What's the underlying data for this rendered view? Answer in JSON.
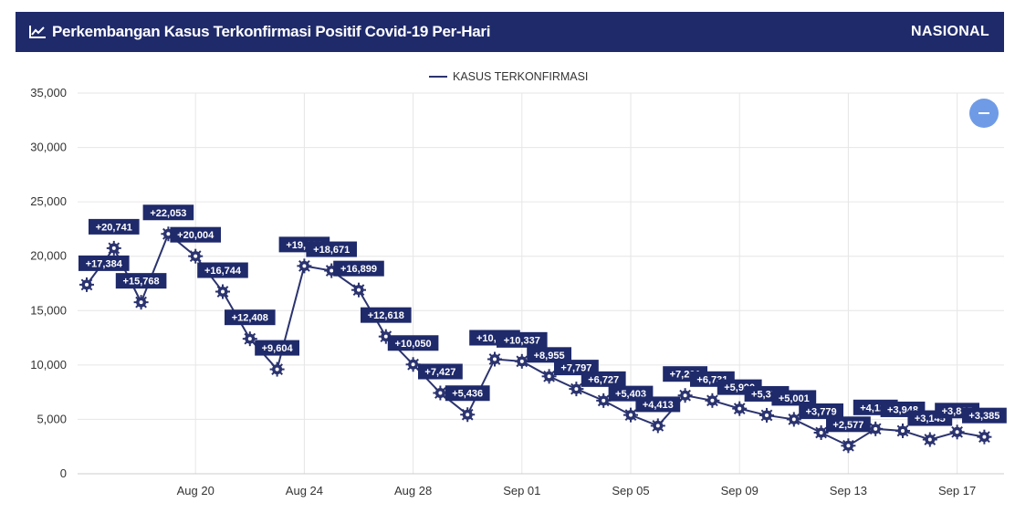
{
  "header": {
    "title": "Perkembangan Kasus Terkonfirmasi Positif Covid-19 Per-Hari",
    "region": "NASIONAL"
  },
  "colors": {
    "header_bg": "#1f2a6b",
    "series": "#2b336f",
    "label_bg": "#1f2a6b",
    "zoom_button": "#6f9be6"
  },
  "chart_data": {
    "type": "line",
    "title": "Perkembangan Kasus Terkonfirmasi Positif Covid-19 Per-Hari",
    "xlabel": "",
    "ylabel": "",
    "ylim": [
      0,
      35000
    ],
    "y_ticks": [
      0,
      5000,
      10000,
      15000,
      20000,
      25000,
      30000,
      35000
    ],
    "y_tick_labels": [
      "0",
      "5,000",
      "10,000",
      "15,000",
      "20,000",
      "25,000",
      "30,000",
      "35,000"
    ],
    "x_tick_labels": [
      "Aug 20",
      "Aug 24",
      "Aug 28",
      "Sep 01",
      "Sep 05",
      "Sep 09",
      "Sep 13",
      "Sep 17"
    ],
    "grid": true,
    "legend": "top-center",
    "x": [
      "Aug 16",
      "Aug 17",
      "Aug 18",
      "Aug 19",
      "Aug 20",
      "Aug 21",
      "Aug 22",
      "Aug 23",
      "Aug 24",
      "Aug 25",
      "Aug 26",
      "Aug 27",
      "Aug 28",
      "Aug 29",
      "Aug 30",
      "Aug 31",
      "Sep 01",
      "Sep 02",
      "Sep 03",
      "Sep 04",
      "Sep 05",
      "Sep 06",
      "Sep 07",
      "Sep 08",
      "Sep 09",
      "Sep 10",
      "Sep 11",
      "Sep 12",
      "Sep 13",
      "Sep 14",
      "Sep 15",
      "Sep 16",
      "Sep 17",
      "Sep 18"
    ],
    "series": [
      {
        "name": "KASUS TERKONFIRMASI",
        "values": [
          17384,
          20741,
          15768,
          22053,
          20004,
          16744,
          12408,
          9604,
          19106,
          18671,
          16899,
          12618,
          10050,
          7427,
          5436,
          10534,
          10337,
          8955,
          7797,
          6727,
          5403,
          4413,
          7201,
          6731,
          5990,
          5376,
          5001,
          3779,
          2577,
          4128,
          3948,
          3145,
          3835,
          3385
        ],
        "labels": [
          "+17,384",
          "+20,741",
          "+15,768",
          "+22,053",
          "+20,004",
          "+16,744",
          "+12,408",
          "+9,604",
          "+19,106",
          "+18,671",
          "+16,899",
          "+12,618",
          "+10,050",
          "+7,427",
          "+5,436",
          "+10,534",
          "+10,337",
          "+8,955",
          "+7,797",
          "+6,727",
          "+5,403",
          "+4,413",
          "+7,201",
          "+6,731",
          "+5,990",
          "+5,376",
          "+5,001",
          "+3,779",
          "+2,577",
          "+4,128",
          "+3,948",
          "+3,145",
          "+3,835",
          "+3,385"
        ]
      }
    ]
  }
}
